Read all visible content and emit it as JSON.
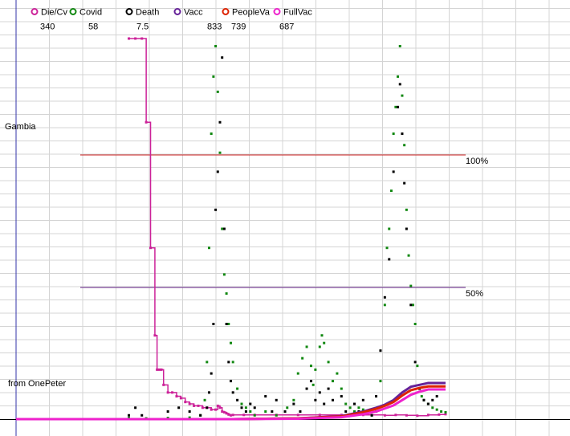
{
  "chart_data": {
    "type": "line",
    "country_label": "Gambia",
    "source_label": "from OnePeter",
    "legend": [
      {
        "name": "Die/Cv",
        "value": "340",
        "color": "#cc2299"
      },
      {
        "name": "Covid",
        "value": "58",
        "color": "#118811"
      },
      {
        "name": "Death",
        "value": "7.5",
        "color": "#000000"
      },
      {
        "name": "Vacc",
        "value": "833",
        "color": "#662299"
      },
      {
        "name": "PeopleVa",
        "value": "739",
        "color": "#dd2200"
      },
      {
        "name": "FullVac",
        "value": "687",
        "color": "#ee22cc"
      }
    ],
    "reference_lines": [
      {
        "label": "100%",
        "level": 1.0,
        "color": "#cc2222"
      },
      {
        "label": "50%",
        "level": 0.5,
        "color": "#662288"
      }
    ],
    "series": [
      {
        "name": "Die/Cv",
        "color": "#cc2299",
        "style": "stepline",
        "points": [
          [
            52,
            1
          ],
          [
            55,
            1
          ],
          [
            58,
            1
          ],
          [
            60,
            0.78
          ],
          [
            62,
            0.45
          ],
          [
            64,
            0.22
          ],
          [
            65,
            0.13
          ],
          [
            66,
            0.13
          ],
          [
            67,
            0.13
          ],
          [
            68,
            0.09
          ],
          [
            70,
            0.07
          ],
          [
            72,
            0.07
          ],
          [
            74,
            0.06
          ],
          [
            76,
            0.055
          ],
          [
            78,
            0.045
          ],
          [
            80,
            0.04
          ],
          [
            82,
            0.035
          ],
          [
            84,
            0.035
          ],
          [
            86,
            0.03
          ],
          [
            88,
            0.03
          ],
          [
            90,
            0.025
          ],
          [
            92,
            0.025
          ],
          [
            93,
            0.035
          ],
          [
            94,
            0.03
          ],
          [
            95,
            0.02
          ],
          [
            96,
            0.018
          ],
          [
            97,
            0.015
          ],
          [
            98,
            0.012
          ],
          [
            99,
            0.01
          ],
          [
            100,
            0.011
          ],
          [
            105,
            0.011
          ],
          [
            110,
            0.011
          ],
          [
            120,
            0.011
          ],
          [
            130,
            0.011
          ],
          [
            140,
            0.011
          ],
          [
            150,
            0.011
          ],
          [
            160,
            0.011
          ],
          [
            170,
            0.01
          ],
          [
            175,
            0.011
          ],
          [
            180,
            0.01
          ],
          [
            185,
            0.009
          ],
          [
            190,
            0.011
          ],
          [
            195,
            0.012
          ],
          [
            198,
            0.013
          ]
        ]
      },
      {
        "name": "Covid",
        "color": "#118811",
        "style": "dots",
        "points": [
          [
            52,
            0.003
          ],
          [
            60,
            0.002
          ],
          [
            70,
            0.003
          ],
          [
            80,
            0.004
          ],
          [
            85,
            0.01
          ],
          [
            87,
            0.05
          ],
          [
            88,
            0.15
          ],
          [
            89,
            0.45
          ],
          [
            90,
            0.75
          ],
          [
            91,
            0.9
          ],
          [
            92,
            0.98
          ],
          [
            93,
            0.86
          ],
          [
            94,
            0.7
          ],
          [
            95,
            0.5
          ],
          [
            96,
            0.38
          ],
          [
            97,
            0.33
          ],
          [
            98,
            0.25
          ],
          [
            99,
            0.2
          ],
          [
            100,
            0.15
          ],
          [
            102,
            0.08
          ],
          [
            104,
            0.04
          ],
          [
            106,
            0.03
          ],
          [
            108,
            0.02
          ],
          [
            110,
            0.01
          ],
          [
            115,
            0.02
          ],
          [
            120,
            0.01
          ],
          [
            125,
            0.03
          ],
          [
            128,
            0.05
          ],
          [
            130,
            0.12
          ],
          [
            132,
            0.16
          ],
          [
            134,
            0.19
          ],
          [
            136,
            0.14
          ],
          [
            137,
            0.09
          ],
          [
            138,
            0.13
          ],
          [
            140,
            0.19
          ],
          [
            141,
            0.22
          ],
          [
            142,
            0.2
          ],
          [
            144,
            0.15
          ],
          [
            146,
            0.1
          ],
          [
            148,
            0.12
          ],
          [
            150,
            0.08
          ],
          [
            152,
            0.04
          ],
          [
            154,
            0.03
          ],
          [
            156,
            0.02
          ],
          [
            158,
            0.03
          ],
          [
            160,
            0.025
          ],
          [
            162,
            0.02
          ],
          [
            164,
            0.01
          ],
          [
            166,
            0.02
          ],
          [
            168,
            0.1
          ],
          [
            170,
            0.3
          ],
          [
            171,
            0.45
          ],
          [
            172,
            0.5
          ],
          [
            173,
            0.6
          ],
          [
            174,
            0.75
          ],
          [
            175,
            0.82
          ],
          [
            176,
            0.9
          ],
          [
            177,
            0.98
          ],
          [
            178,
            0.85
          ],
          [
            179,
            0.72
          ],
          [
            180,
            0.55
          ],
          [
            181,
            0.43
          ],
          [
            182,
            0.35
          ],
          [
            183,
            0.3
          ],
          [
            184,
            0.25
          ],
          [
            185,
            0.14
          ],
          [
            186,
            0.08
          ],
          [
            187,
            0.06
          ],
          [
            188,
            0.05
          ],
          [
            190,
            0.04
          ],
          [
            192,
            0.03
          ],
          [
            194,
            0.025
          ],
          [
            196,
            0.02
          ],
          [
            198,
            0.018
          ]
        ]
      },
      {
        "name": "Death",
        "color": "#000000",
        "style": "dots",
        "points": [
          [
            52,
            0.01
          ],
          [
            55,
            0.03
          ],
          [
            58,
            0.01
          ],
          [
            70,
            0.02
          ],
          [
            75,
            0.03
          ],
          [
            80,
            0.02
          ],
          [
            85,
            0.01
          ],
          [
            88,
            0.03
          ],
          [
            89,
            0.07
          ],
          [
            90,
            0.12
          ],
          [
            91,
            0.25
          ],
          [
            92,
            0.55
          ],
          [
            93,
            0.65
          ],
          [
            94,
            0.78
          ],
          [
            95,
            0.95
          ],
          [
            96,
            0.5
          ],
          [
            97,
            0.25
          ],
          [
            98,
            0.15
          ],
          [
            99,
            0.1
          ],
          [
            100,
            0.07
          ],
          [
            102,
            0.05
          ],
          [
            104,
            0.03
          ],
          [
            106,
            0.02
          ],
          [
            108,
            0.04
          ],
          [
            110,
            0.03
          ],
          [
            115,
            0.06
          ],
          [
            118,
            0.02
          ],
          [
            120,
            0.05
          ],
          [
            124,
            0.02
          ],
          [
            128,
            0.04
          ],
          [
            131,
            0.02
          ],
          [
            134,
            0.08
          ],
          [
            136,
            0.1
          ],
          [
            138,
            0.05
          ],
          [
            140,
            0.07
          ],
          [
            142,
            0.04
          ],
          [
            144,
            0.08
          ],
          [
            146,
            0.05
          ],
          [
            150,
            0.06
          ],
          [
            152,
            0.02
          ],
          [
            156,
            0.04
          ],
          [
            158,
            0.02
          ],
          [
            160,
            0.05
          ],
          [
            162,
            0.02
          ],
          [
            164,
            0.01
          ],
          [
            166,
            0.06
          ],
          [
            168,
            0.18
          ],
          [
            170,
            0.32
          ],
          [
            172,
            0.42
          ],
          [
            174,
            0.65
          ],
          [
            176,
            0.82
          ],
          [
            177,
            0.88
          ],
          [
            178,
            0.75
          ],
          [
            179,
            0.62
          ],
          [
            180,
            0.5
          ],
          [
            182,
            0.3
          ],
          [
            184,
            0.15
          ],
          [
            186,
            0.08
          ],
          [
            188,
            0.05
          ],
          [
            190,
            0.04
          ],
          [
            192,
            0.05
          ],
          [
            194,
            0.06
          ]
        ]
      },
      {
        "name": "Vacc",
        "color": "#662299",
        "style": "line",
        "points": [
          [
            0,
            0
          ],
          [
            100,
            0
          ],
          [
            130,
            0.002
          ],
          [
            150,
            0.008
          ],
          [
            160,
            0.02
          ],
          [
            166,
            0.03
          ],
          [
            170,
            0.038
          ],
          [
            174,
            0.05
          ],
          [
            178,
            0.07
          ],
          [
            182,
            0.085
          ],
          [
            186,
            0.09
          ],
          [
            190,
            0.095
          ],
          [
            198,
            0.095
          ]
        ]
      },
      {
        "name": "PeopleVa",
        "color": "#dd2200",
        "style": "line",
        "points": [
          [
            0,
            0
          ],
          [
            100,
            0
          ],
          [
            130,
            0.002
          ],
          [
            150,
            0.007
          ],
          [
            160,
            0.018
          ],
          [
            166,
            0.027
          ],
          [
            170,
            0.035
          ],
          [
            174,
            0.045
          ],
          [
            178,
            0.062
          ],
          [
            182,
            0.076
          ],
          [
            186,
            0.082
          ],
          [
            190,
            0.086
          ],
          [
            198,
            0.086
          ]
        ]
      },
      {
        "name": "FullVac",
        "color": "#ee22cc",
        "style": "line",
        "points": [
          [
            0,
            0
          ],
          [
            100,
            0
          ],
          [
            130,
            0.001
          ],
          [
            150,
            0.005
          ],
          [
            160,
            0.013
          ],
          [
            166,
            0.02
          ],
          [
            170,
            0.028
          ],
          [
            174,
            0.036
          ],
          [
            178,
            0.05
          ],
          [
            182,
            0.064
          ],
          [
            186,
            0.072
          ],
          [
            190,
            0.078
          ],
          [
            198,
            0.078
          ]
        ]
      }
    ]
  }
}
